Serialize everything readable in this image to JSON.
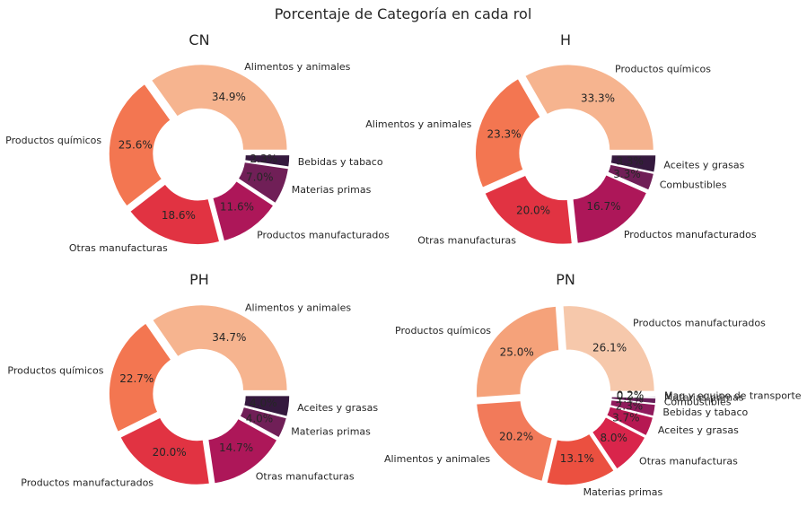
{
  "title": "Porcentaje de Categoría en cada rol",
  "chart_data": [
    {
      "type": "pie",
      "title": "CN",
      "slices": [
        {
          "label": "Alimentos y animales",
          "value": 34.9,
          "pct": "34.9%",
          "color": "#f6b48f"
        },
        {
          "label": "Productos químicos",
          "value": 25.6,
          "pct": "25.6%",
          "color": "#f37651"
        },
        {
          "label": "Otras manufacturas",
          "value": 18.6,
          "pct": "18.6%",
          "color": "#e13342"
        },
        {
          "label": "Productos manufacturados",
          "value": 11.6,
          "pct": "11.6%",
          "color": "#ad1759"
        },
        {
          "label": "Materias primas",
          "value": 7.0,
          "pct": "7.0%",
          "color": "#701f57"
        },
        {
          "label": "Bebidas y tabaco",
          "value": 2.3,
          "pct": "2.3%",
          "color": "#35193e"
        }
      ]
    },
    {
      "type": "pie",
      "title": "H",
      "slices": [
        {
          "label": "Productos químicos",
          "value": 33.3,
          "pct": "33.3%",
          "color": "#f6b48f"
        },
        {
          "label": "Alimentos y animales",
          "value": 23.3,
          "pct": "23.3%",
          "color": "#f37651"
        },
        {
          "label": "Otras manufacturas",
          "value": 20.0,
          "pct": "20.0%",
          "color": "#e13342"
        },
        {
          "label": "Productos manufacturados",
          "value": 16.7,
          "pct": "16.7%",
          "color": "#ad1759"
        },
        {
          "label": "Combustibles",
          "value": 3.3,
          "pct": "3.3%",
          "color": "#701f57"
        },
        {
          "label": "Aceites y grasas",
          "value": 3.3,
          "pct": "3.3%",
          "color": "#35193e"
        }
      ]
    },
    {
      "type": "pie",
      "title": "PH",
      "slices": [
        {
          "label": "Alimentos y animales",
          "value": 34.7,
          "pct": "34.7%",
          "color": "#f6b48f"
        },
        {
          "label": "Productos químicos",
          "value": 22.7,
          "pct": "22.7%",
          "color": "#f37651"
        },
        {
          "label": "Productos manufacturados",
          "value": 20.0,
          "pct": "20.0%",
          "color": "#e13342"
        },
        {
          "label": "Otras manufacturas",
          "value": 14.7,
          "pct": "14.7%",
          "color": "#ad1759"
        },
        {
          "label": "Materias primas",
          "value": 4.0,
          "pct": "4.0%",
          "color": "#701f57"
        },
        {
          "label": "Aceites y grasas",
          "value": 4.0,
          "pct": "4.0%",
          "color": "#35193e"
        }
      ]
    },
    {
      "type": "pie",
      "title": "PN",
      "slices": [
        {
          "label": "Productos manufacturados",
          "value": 26.1,
          "pct": "26.1%",
          "color": "#f6c8ab"
        },
        {
          "label": "Productos químicos",
          "value": 25.0,
          "pct": "25.0%",
          "color": "#f5a27a"
        },
        {
          "label": "Alimentos y animales",
          "value": 20.2,
          "pct": "20.2%",
          "color": "#f27a5a"
        },
        {
          "label": "Materias primas",
          "value": 13.1,
          "pct": "13.1%",
          "color": "#eb5040"
        },
        {
          "label": "Otras manufacturas",
          "value": 8.0,
          "pct": "8.0%",
          "color": "#d9254b"
        },
        {
          "label": "Aceites y grasas",
          "value": 3.7,
          "pct": "3.7%",
          "color": "#b61852"
        },
        {
          "label": "Bebidas y tabaco",
          "value": 2.3,
          "pct": "2.3%",
          "color": "#8f1b5c"
        },
        {
          "label": "Combustibles",
          "value": 1.1,
          "pct": "1.1%",
          "color": "#68205a"
        },
        {
          "label": "Materias primas",
          "value": 0.3,
          "pct": "0.3%",
          "color": "#432050"
        },
        {
          "label": "Maq y equipo de transporte",
          "value": 0.2,
          "pct": "0.2%",
          "color": "#2a1636"
        }
      ]
    }
  ]
}
